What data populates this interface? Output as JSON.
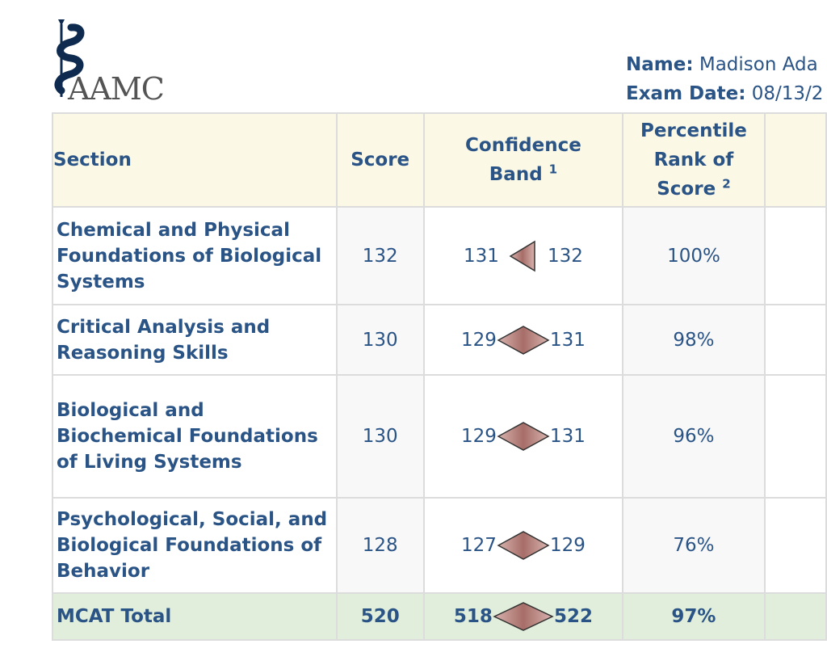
{
  "logo": {
    "text": "AAMC"
  },
  "header": {
    "name_label": "Name:",
    "name_value": "Madison Ada",
    "date_label": "Exam Date:",
    "date_value": "08/13/2"
  },
  "table": {
    "headers": {
      "section": "Section",
      "score": "Score",
      "band_line1": "Confidence",
      "band_line2": "Band",
      "band_note": "1",
      "pct_line1": "Percentile",
      "pct_line2": "Rank of",
      "pct_line3": "Score",
      "pct_note": "2"
    },
    "rows": [
      {
        "section": "Chemical and Physical Foundations of Biological Systems",
        "score": "132",
        "band_low": "131",
        "band_high": "132",
        "percentile": "100%"
      },
      {
        "section": "Critical Analysis and Reasoning Skills",
        "score": "130",
        "band_low": "129",
        "band_high": "131",
        "percentile": "98%"
      },
      {
        "section": "Biological and Biochemical Foundations of Living Systems",
        "score": "130",
        "band_low": "129",
        "band_high": "131",
        "percentile": "96%"
      },
      {
        "section": "Psychological, Social, and Biological Foundations of Behavior",
        "score": "128",
        "band_low": "127",
        "band_high": "129",
        "percentile": "76%"
      }
    ],
    "total": {
      "section": "MCAT Total",
      "score": "520",
      "band_low": "518",
      "band_high": "522",
      "percentile": "97%"
    }
  },
  "colors": {
    "header_bg": "#fbf8e6",
    "total_bg": "#e1eedb",
    "text": "#2b5486",
    "band_fill": "#b07c78"
  }
}
